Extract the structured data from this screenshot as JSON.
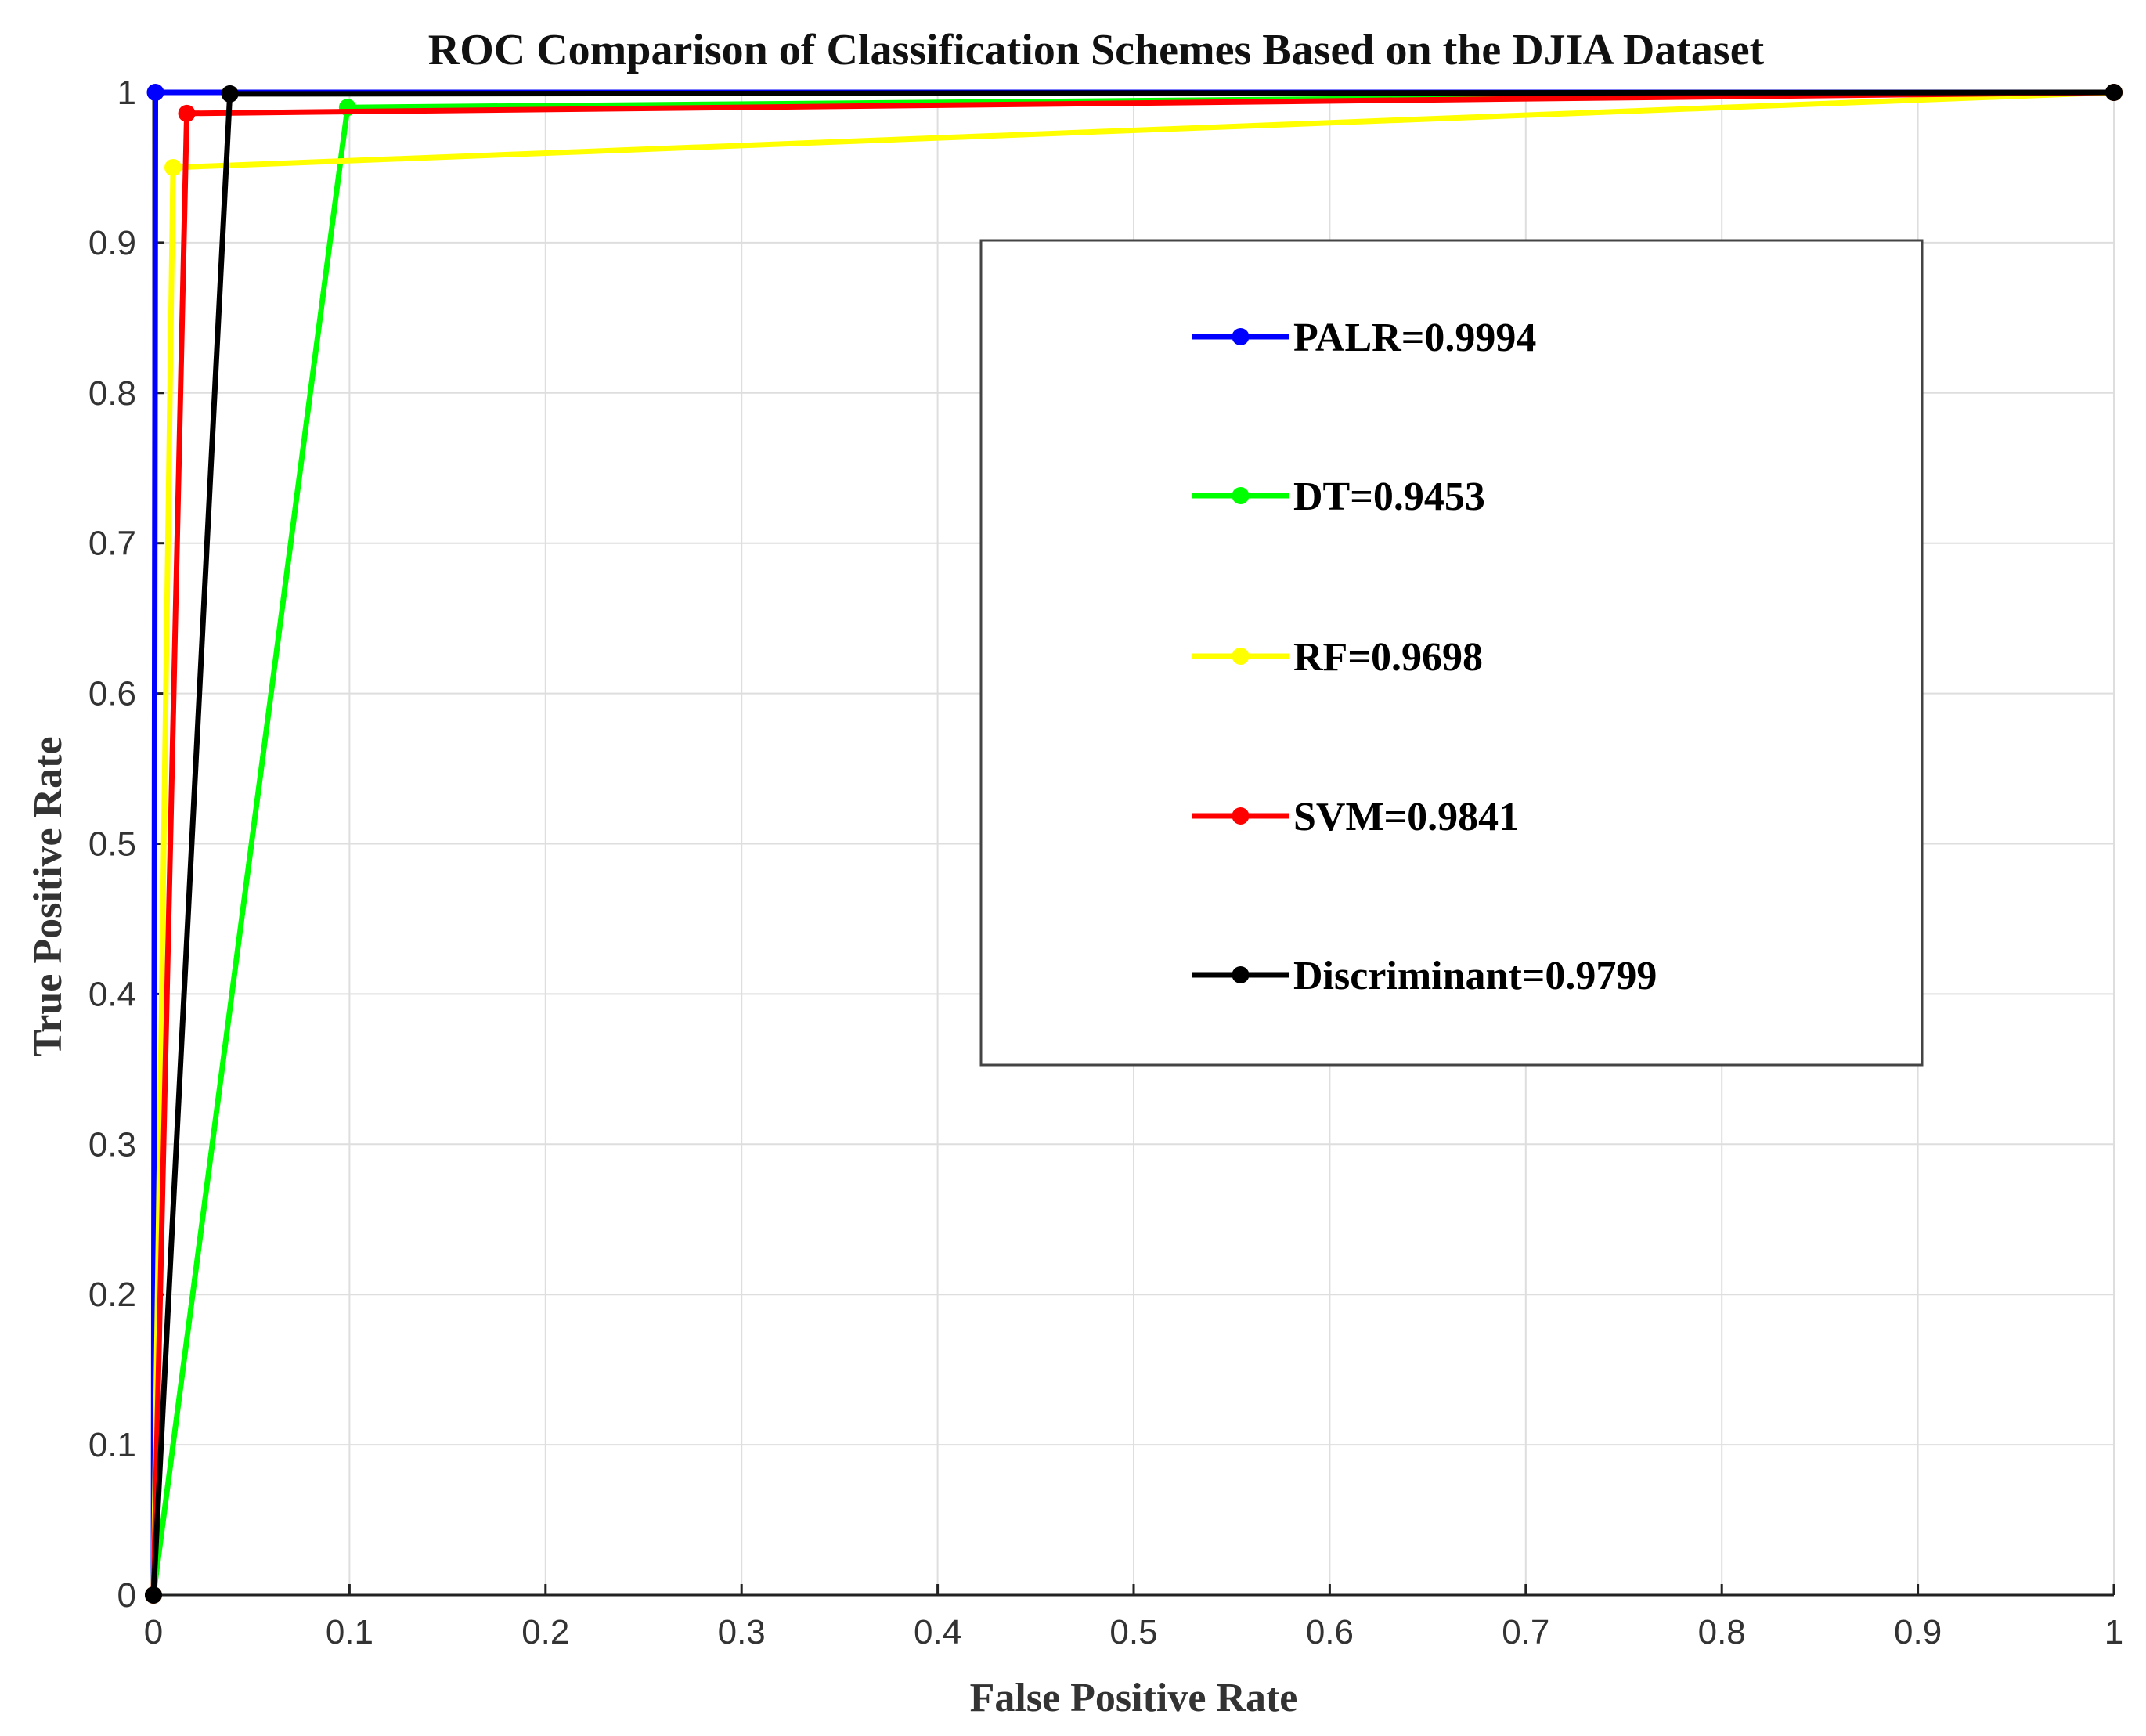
{
  "chart_data": {
    "type": "line",
    "title": "ROC Comparison of Classification Schemes Based on the DJIA Dataset",
    "xlabel": "False Positive Rate",
    "ylabel": "True Positive Rate",
    "xlim": [
      0,
      1
    ],
    "ylim": [
      0,
      1
    ],
    "xticks": [
      "0",
      "0.1",
      "0.2",
      "0.3",
      "0.4",
      "0.5",
      "0.6",
      "0.7",
      "0.8",
      "0.9",
      "1"
    ],
    "yticks": [
      "0",
      "0.1",
      "0.2",
      "0.3",
      "0.4",
      "0.5",
      "0.6",
      "0.7",
      "0.8",
      "0.9",
      "1"
    ],
    "grid": true,
    "legend_position": "center-right",
    "series": [
      {
        "name": "PALR=0.9994",
        "color": "#0000ff",
        "x": [
          0,
          0.001,
          1
        ],
        "y": [
          0,
          1.0,
          1.0
        ]
      },
      {
        "name": "DT=0.9453",
        "color": "#00ff00",
        "x": [
          0,
          0.099,
          1
        ],
        "y": [
          0,
          0.99,
          1.0
        ]
      },
      {
        "name": "RF=0.9698",
        "color": "#ffff00",
        "x": [
          0,
          0.01,
          1
        ],
        "y": [
          0,
          0.95,
          1.0
        ]
      },
      {
        "name": "SVM=0.9841",
        "color": "#ff0000",
        "x": [
          0,
          0.017,
          1
        ],
        "y": [
          0,
          0.986,
          1.0
        ]
      },
      {
        "name": "Discriminant=0.9799",
        "color": "#000000",
        "x": [
          0,
          0.039,
          1
        ],
        "y": [
          0,
          0.999,
          1.0
        ]
      }
    ]
  }
}
